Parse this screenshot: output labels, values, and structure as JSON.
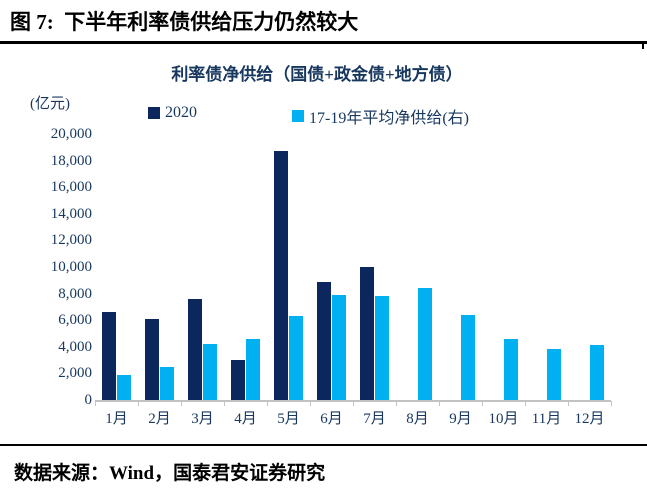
{
  "header": {
    "title": "图 7:  下半年利率债供给压力仍然较大"
  },
  "footer": {
    "source": "数据来源：Wind，国泰君安证券研究"
  },
  "colors": {
    "series_2020": "#0c265e",
    "series_avg": "#00b0f0",
    "axis_text": "#17375e",
    "axis_line": "#c3c3c3"
  },
  "chart_data": {
    "type": "bar",
    "title": "利率债净供给（国债+政金债+地方债）",
    "unit_label": "(亿元)",
    "categories": [
      "1月",
      "2月",
      "3月",
      "4月",
      "5月",
      "6月",
      "7月",
      "8月",
      "9月",
      "10月",
      "11月",
      "12月"
    ],
    "series": [
      {
        "id": "2020",
        "name": "2020",
        "color": "#0c265e",
        "values": [
          6600,
          6100,
          7600,
          3000,
          18700,
          8900,
          10000,
          null,
          null,
          null,
          null,
          null
        ]
      },
      {
        "id": "avg-17-19",
        "name": "17-19年平均净供给(右)",
        "color": "#00b0f0",
        "values": [
          1900,
          2500,
          4200,
          4600,
          6300,
          7900,
          7800,
          8400,
          6400,
          4600,
          3800,
          4100
        ]
      }
    ],
    "ylim": [
      0,
      20000
    ],
    "ytick_step": 2000,
    "grid": false,
    "legend_position": "top"
  }
}
